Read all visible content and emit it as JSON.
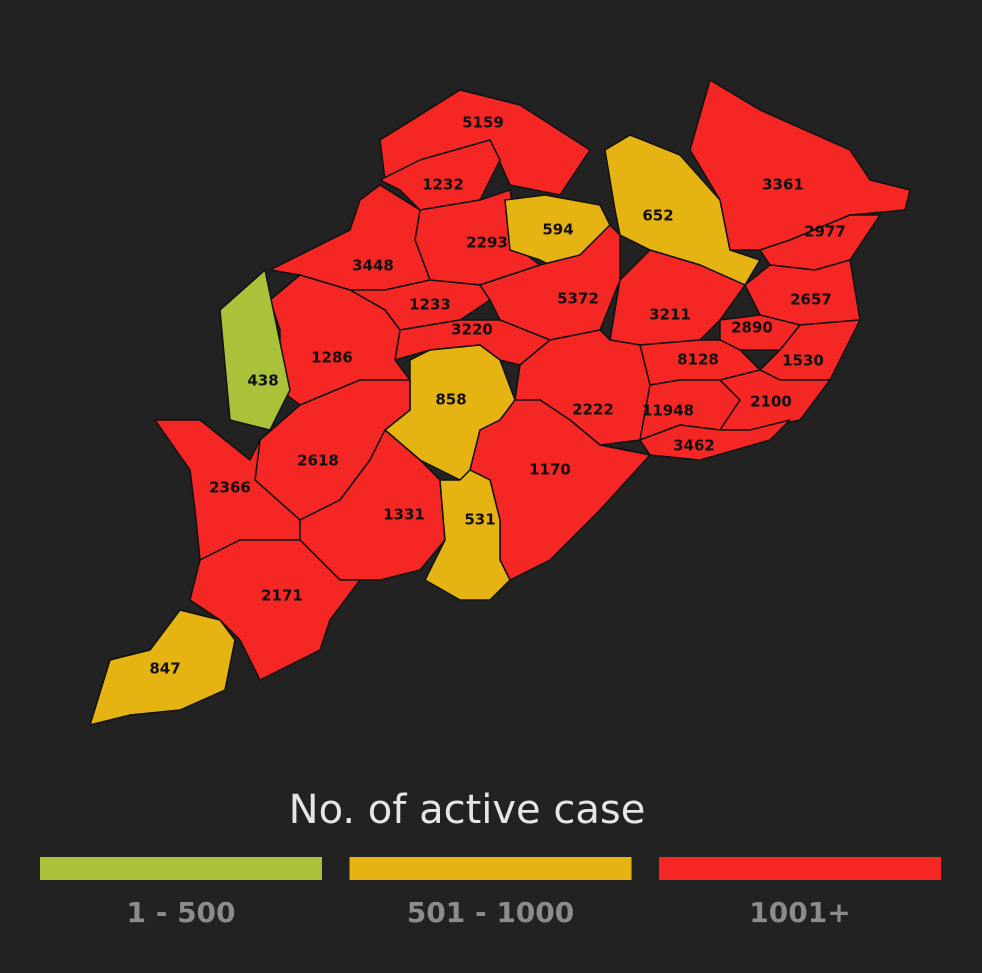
{
  "map": {
    "regions": [
      {
        "value": 5159,
        "color": "#f52724"
      },
      {
        "value": 1232,
        "color": "#f52724"
      },
      {
        "value": 2293,
        "color": "#f52724"
      },
      {
        "value": 594,
        "color": "#e6b412"
      },
      {
        "value": 652,
        "color": "#e6b412"
      },
      {
        "value": 3361,
        "color": "#f52724"
      },
      {
        "value": 2977,
        "color": "#f52724"
      },
      {
        "value": 3448,
        "color": "#f52724"
      },
      {
        "value": 1233,
        "color": "#f52724"
      },
      {
        "value": 5372,
        "color": "#f52724"
      },
      {
        "value": 3211,
        "color": "#f52724"
      },
      {
        "value": 2657,
        "color": "#f52724"
      },
      {
        "value": 2890,
        "color": "#f52724"
      },
      {
        "value": 3220,
        "color": "#f52724"
      },
      {
        "value": 1286,
        "color": "#f52724"
      },
      {
        "value": 438,
        "color": "#a9c23a"
      },
      {
        "value": 858,
        "color": "#e6b412"
      },
      {
        "value": 8128,
        "color": "#f52724"
      },
      {
        "value": 1530,
        "color": "#f52724"
      },
      {
        "value": 2222,
        "color": "#f52724"
      },
      {
        "value": 11948,
        "color": "#f52724"
      },
      {
        "value": 2100,
        "color": "#f52724"
      },
      {
        "value": 3462,
        "color": "#f52724"
      },
      {
        "value": 2618,
        "color": "#f52724"
      },
      {
        "value": 1170,
        "color": "#f52724"
      },
      {
        "value": 2366,
        "color": "#f52724"
      },
      {
        "value": 1331,
        "color": "#f52724"
      },
      {
        "value": 531,
        "color": "#e6b412"
      },
      {
        "value": 2171,
        "color": "#f52724"
      },
      {
        "value": 847,
        "color": "#e6b412"
      }
    ]
  },
  "legend": {
    "title": "No. of active case",
    "items": [
      {
        "label": "1 - 500",
        "color": "#a9c23a"
      },
      {
        "label": "501 - 1000",
        "color": "#e6b412"
      },
      {
        "label": "1001+",
        "color": "#f52724"
      }
    ]
  }
}
